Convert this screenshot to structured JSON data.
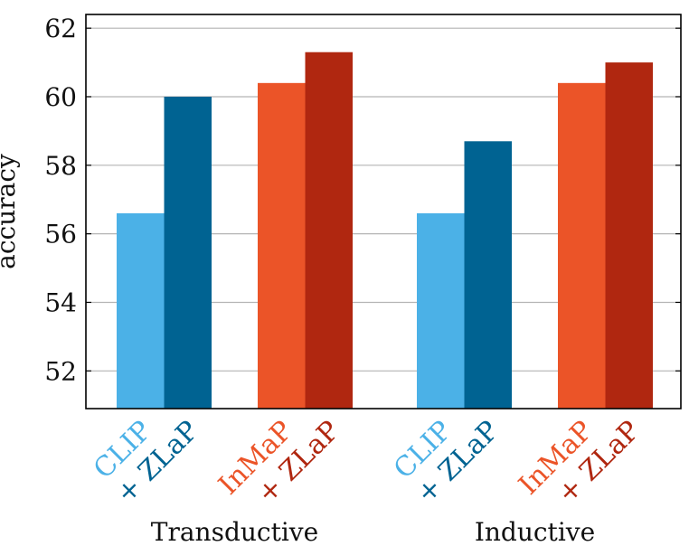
{
  "chart_data": {
    "type": "bar",
    "ylabel": "accuracy",
    "ylim": [
      50.9,
      62.4
    ],
    "yticks": [
      52,
      54,
      56,
      58,
      60,
      62
    ],
    "grid": true,
    "groups": [
      {
        "label": "Transductive",
        "bars": [
          {
            "label": "CLIP",
            "value": 56.6,
            "color": "#4bb1e7"
          },
          {
            "label": "+ ZLaP",
            "value": 60.0,
            "color": "#006392"
          },
          {
            "label": "InMaP",
            "value": 60.4,
            "color": "#eb5428"
          },
          {
            "label": "+ ZLaP",
            "value": 61.3,
            "color": "#b02710"
          }
        ]
      },
      {
        "label": "Inductive",
        "bars": [
          {
            "label": "CLIP",
            "value": 56.6,
            "color": "#4bb1e7"
          },
          {
            "label": "+ ZLaP",
            "value": 58.7,
            "color": "#006392"
          },
          {
            "label": "InMaP",
            "value": 60.4,
            "color": "#eb5428"
          },
          {
            "label": "+ ZLaP",
            "value": 61.0,
            "color": "#b02710"
          }
        ]
      }
    ]
  }
}
